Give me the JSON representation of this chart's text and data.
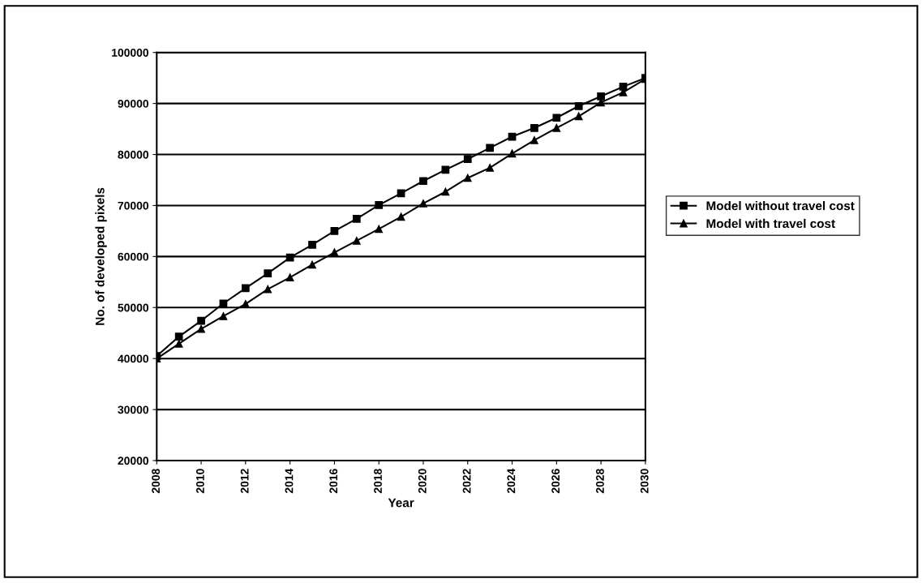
{
  "chart_data": {
    "type": "line",
    "xlabel": "Year",
    "ylabel": "No. of developed pixels",
    "x": [
      2008,
      2009,
      2010,
      2011,
      2012,
      2013,
      2014,
      2015,
      2016,
      2017,
      2018,
      2019,
      2020,
      2021,
      2022,
      2023,
      2024,
      2025,
      2026,
      2027,
      2028,
      2029,
      2030
    ],
    "series": [
      {
        "name": "Model without travel cost",
        "color": "#000000",
        "marker": "square",
        "values": [
          40500,
          44300,
          47400,
          50800,
          53800,
          56700,
          59800,
          62300,
          65000,
          67400,
          70100,
          72400,
          74800,
          77000,
          79100,
          81300,
          83500,
          85200,
          87200,
          89500,
          91400,
          93300,
          95000
        ]
      },
      {
        "name": "Model with travel cost",
        "color": "#000000",
        "marker": "triangle",
        "values": [
          40000,
          42900,
          45800,
          48300,
          50700,
          53600,
          55900,
          58400,
          60800,
          63100,
          65400,
          67800,
          70400,
          72700,
          75400,
          77400,
          80200,
          82800,
          85200,
          87500,
          90200,
          92200,
          94800
        ]
      }
    ],
    "xlim": [
      2008,
      2030
    ],
    "xticks": [
      2008,
      2010,
      2012,
      2014,
      2016,
      2018,
      2020,
      2022,
      2024,
      2026,
      2028,
      2030
    ],
    "ylim": [
      20000,
      100000
    ],
    "yticks": [
      20000,
      30000,
      40000,
      50000,
      60000,
      70000,
      80000,
      90000,
      100000
    ],
    "grid": "y",
    "legend": "right",
    "line_style": "solid"
  }
}
